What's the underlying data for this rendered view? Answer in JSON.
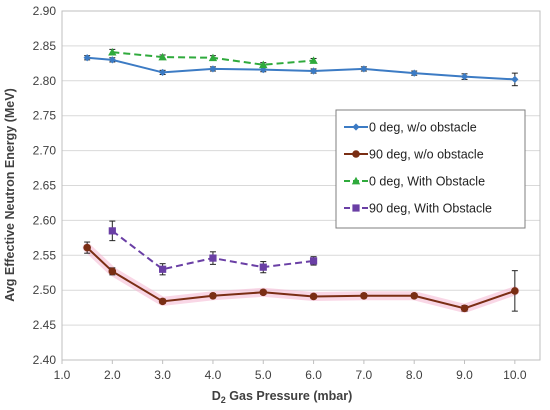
{
  "chart_data": {
    "type": "line",
    "title": "",
    "xlabel_main": "D",
    "xlabel_sub": "2",
    "xlabel_rest": " Gas Pressure (mbar)",
    "ylabel": "Avg Effective Neutron Energy (MeV)",
    "xlim": [
      1.0,
      10.5
    ],
    "ylim": [
      2.4,
      2.9
    ],
    "x_ticks": [
      "1.0",
      "2.0",
      "3.0",
      "4.0",
      "5.0",
      "6.0",
      "7.0",
      "8.0",
      "9.0",
      "10.0"
    ],
    "x_tick_values": [
      1,
      2,
      3,
      4,
      5,
      6,
      7,
      8,
      9,
      10
    ],
    "y_ticks": [
      "2.40",
      "2.45",
      "2.50",
      "2.55",
      "2.60",
      "2.65",
      "2.70",
      "2.75",
      "2.80",
      "2.85",
      "2.90"
    ],
    "y_tick_values": [
      2.4,
      2.45,
      2.5,
      2.55,
      2.6,
      2.65,
      2.7,
      2.75,
      2.8,
      2.85,
      2.9
    ],
    "grid": "horizontal",
    "legend_position": "right",
    "series": [
      {
        "name": "0 deg, w/o obstacle",
        "color": "#3C7BC4",
        "marker": "diamond",
        "dash": "solid",
        "x": [
          1.5,
          2,
          3,
          4,
          5,
          6,
          7,
          8,
          9,
          10
        ],
        "y": [
          2.833,
          2.83,
          2.812,
          2.817,
          2.816,
          2.814,
          2.817,
          2.811,
          2.806,
          2.802
        ],
        "err": [
          0.003,
          0.003,
          0.003,
          0.003,
          0.003,
          0.003,
          0.003,
          0.003,
          0.004,
          0.009
        ]
      },
      {
        "name": "90 deg, w/o obstacle",
        "color": "#7A2E14",
        "marker": "circle",
        "dash": "solid",
        "x": [
          1.5,
          2,
          3,
          4,
          5,
          6,
          7,
          8,
          9,
          10
        ],
        "y": [
          2.561,
          2.527,
          2.484,
          2.492,
          2.497,
          2.491,
          2.492,
          2.492,
          2.474,
          2.499
        ],
        "err": [
          0.008,
          0.005,
          0.003,
          0.003,
          0.003,
          0.003,
          0.003,
          0.003,
          0.004,
          0.029
        ]
      },
      {
        "name": "0 deg, With Obstacle",
        "color": "#2FAA3C",
        "marker": "triangle",
        "dash": "dashed",
        "x": [
          2,
          3,
          4,
          5,
          6
        ],
        "y": [
          2.841,
          2.834,
          2.833,
          2.823,
          2.829
        ],
        "err": [
          0.004,
          0.003,
          0.003,
          0.003,
          0.003
        ]
      },
      {
        "name": "90 deg, With Obstacle",
        "color": "#6A3FA5",
        "marker": "square",
        "dash": "dashed",
        "x": [
          2,
          3,
          4,
          5,
          6
        ],
        "y": [
          2.585,
          2.53,
          2.546,
          2.533,
          2.542
        ],
        "err": [
          0.014,
          0.008,
          0.009,
          0.008,
          0.006
        ]
      }
    ]
  }
}
